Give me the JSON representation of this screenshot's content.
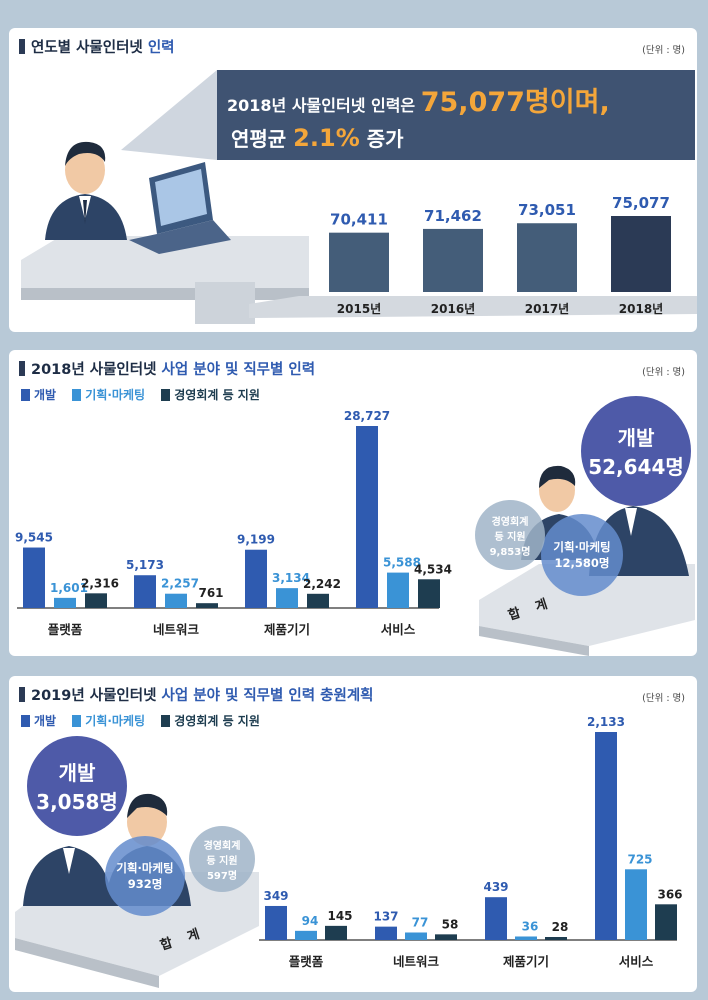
{
  "colors": {
    "dev": "#2f5bb0",
    "plan": "#3a93d6",
    "support": "#1e3d50",
    "bar2015": "#445d79",
    "accent": "#f4a63a",
    "banner": "#3f5372"
  },
  "panel1": {
    "title_pre": "연도별 사물인터넷 ",
    "title_hl": "인력",
    "unit": "(단위 : 명)",
    "banner_line1_a": "2018년 사물인터넷 인력은 ",
    "banner_line1_b": "75,077명이며,",
    "banner_line2_a": "연평균 ",
    "banner_line2_b": "2.1%",
    "banner_line2_c": " 증가"
  },
  "panel2": {
    "title_pre": "2018년 사물인터넷 ",
    "title_hl": "사업 분야 및 직무별 인력",
    "unit": "(단위 : 명)",
    "legend": [
      "개발",
      "기획·마케팅",
      "경영회계 등 지원"
    ],
    "total_label": "합 계",
    "bubble_dev_l1": "개발",
    "bubble_dev_l2": "52,644명",
    "bubble_plan_l1": "기획·마케팅",
    "bubble_plan_l2": "12,580명",
    "bubble_sup_l1": "경영회계",
    "bubble_sup_l2": "등 지원",
    "bubble_sup_l3": "9,853명"
  },
  "panel3": {
    "title_pre": "2019년 사물인터넷 ",
    "title_hl": "사업 분야 및 직무별 인력 충원계획",
    "unit": "(단위 : 명)",
    "legend": [
      "개발",
      "기획·마케팅",
      "경영회계 등 지원"
    ],
    "total_label": "합 계",
    "bubble_dev_l1": "개발",
    "bubble_dev_l2": "3,058명",
    "bubble_plan_l1": "기획·마케팅",
    "bubble_plan_l2": "932명",
    "bubble_sup_l1": "경영회계",
    "bubble_sup_l2": "등 지원",
    "bubble_sup_l3": "597명"
  },
  "chart_data": [
    {
      "type": "bar",
      "title": "연도별 사물인터넷 인력",
      "categories": [
        "2015년",
        "2016년",
        "2017년",
        "2018년"
      ],
      "values": [
        70411,
        71462,
        73051,
        75077
      ],
      "value_labels": [
        "70,411",
        "71,462",
        "73,051",
        "75,077"
      ]
    },
    {
      "type": "bar",
      "title": "2018년 사물인터넷 사업 분야 및 직무별 인력",
      "categories": [
        "플랫폼",
        "네트워크",
        "제품기기",
        "서비스"
      ],
      "series": [
        {
          "name": "개발",
          "values": [
            9545,
            5173,
            9199,
            28727
          ],
          "labels": [
            "9,545",
            "5,173",
            "9,199",
            "28,727"
          ]
        },
        {
          "name": "기획·마케팅",
          "values": [
            1601,
            2257,
            3134,
            5588
          ],
          "labels": [
            "1,601",
            "2,257",
            "3,134",
            "5,588"
          ]
        },
        {
          "name": "경영회계 등 지원",
          "values": [
            2316,
            761,
            2242,
            4534
          ],
          "labels": [
            "2,316",
            "761",
            "2,242",
            "4,534"
          ]
        }
      ]
    },
    {
      "type": "bar",
      "title": "2019년 사물인터넷 사업 분야 및 직무별 인력 충원계획",
      "categories": [
        "플랫폼",
        "네트워크",
        "제품기기",
        "서비스"
      ],
      "series": [
        {
          "name": "개발",
          "values": [
            349,
            137,
            439,
            2133
          ],
          "labels": [
            "349",
            "137",
            "439",
            "2,133"
          ]
        },
        {
          "name": "기획·마케팅",
          "values": [
            94,
            77,
            36,
            725
          ],
          "labels": [
            "94",
            "77",
            "36",
            "725"
          ]
        },
        {
          "name": "경영회계 등 지원",
          "values": [
            145,
            58,
            28,
            366
          ],
          "labels": [
            "145",
            "58",
            "28",
            "366"
          ]
        }
      ]
    }
  ]
}
